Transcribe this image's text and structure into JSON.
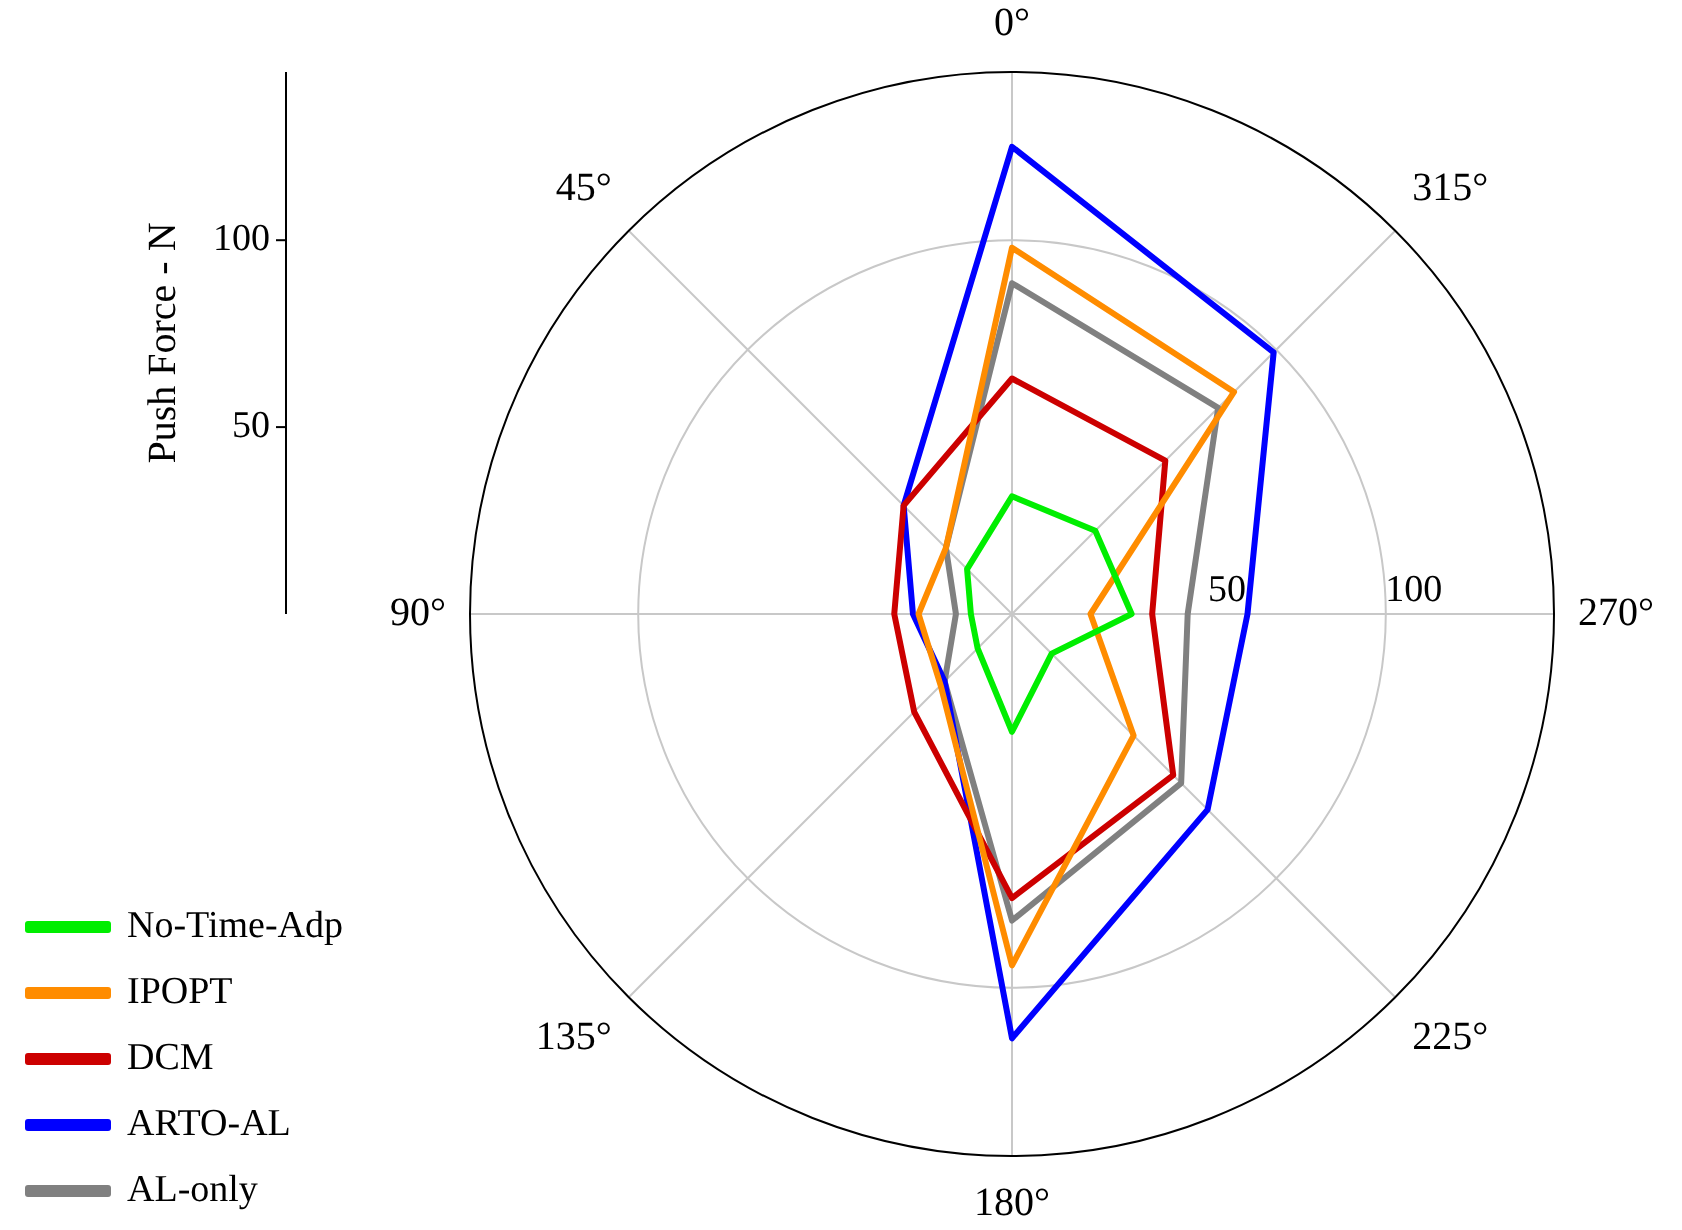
{
  "chart_data": {
    "type": "radar",
    "ylabel": "Push Force - N",
    "categories": [
      "0°",
      "315°",
      "270°",
      "225°",
      "180°",
      "135°",
      "90°",
      "45°"
    ],
    "ylim": [
      0,
      145
    ],
    "yticks": [
      50,
      100
    ],
    "annotations": [
      "100",
      "50"
    ],
    "grid": true,
    "legend": "bottom left",
    "marker": "none",
    "line_style": "solid",
    "series": [
      {
        "name": "No-Time-Adp",
        "color": "#00ee00",
        "values": [
          31.5,
          31.5,
          32,
          15,
          31.5,
          13,
          11,
          17
        ]
      },
      {
        "name": "IPOPT",
        "color": "#ff8c00",
        "values": [
          98,
          84,
          21,
          46,
          94,
          27,
          25,
          25
        ]
      },
      {
        "name": "DCM",
        "color": "#cc0000",
        "values": [
          63,
          58,
          37.5,
          61,
          76,
          37,
          31.5,
          41
        ]
      },
      {
        "name": "ARTO-AL",
        "color": "#0000ff",
        "values": [
          125,
          99,
          63,
          74,
          113.5,
          25.5,
          26.5,
          41
        ]
      },
      {
        "name": "AL-only",
        "color": "#808080",
        "values": [
          88.5,
          78,
          47,
          64,
          82,
          25.5,
          15,
          25
        ]
      }
    ]
  }
}
